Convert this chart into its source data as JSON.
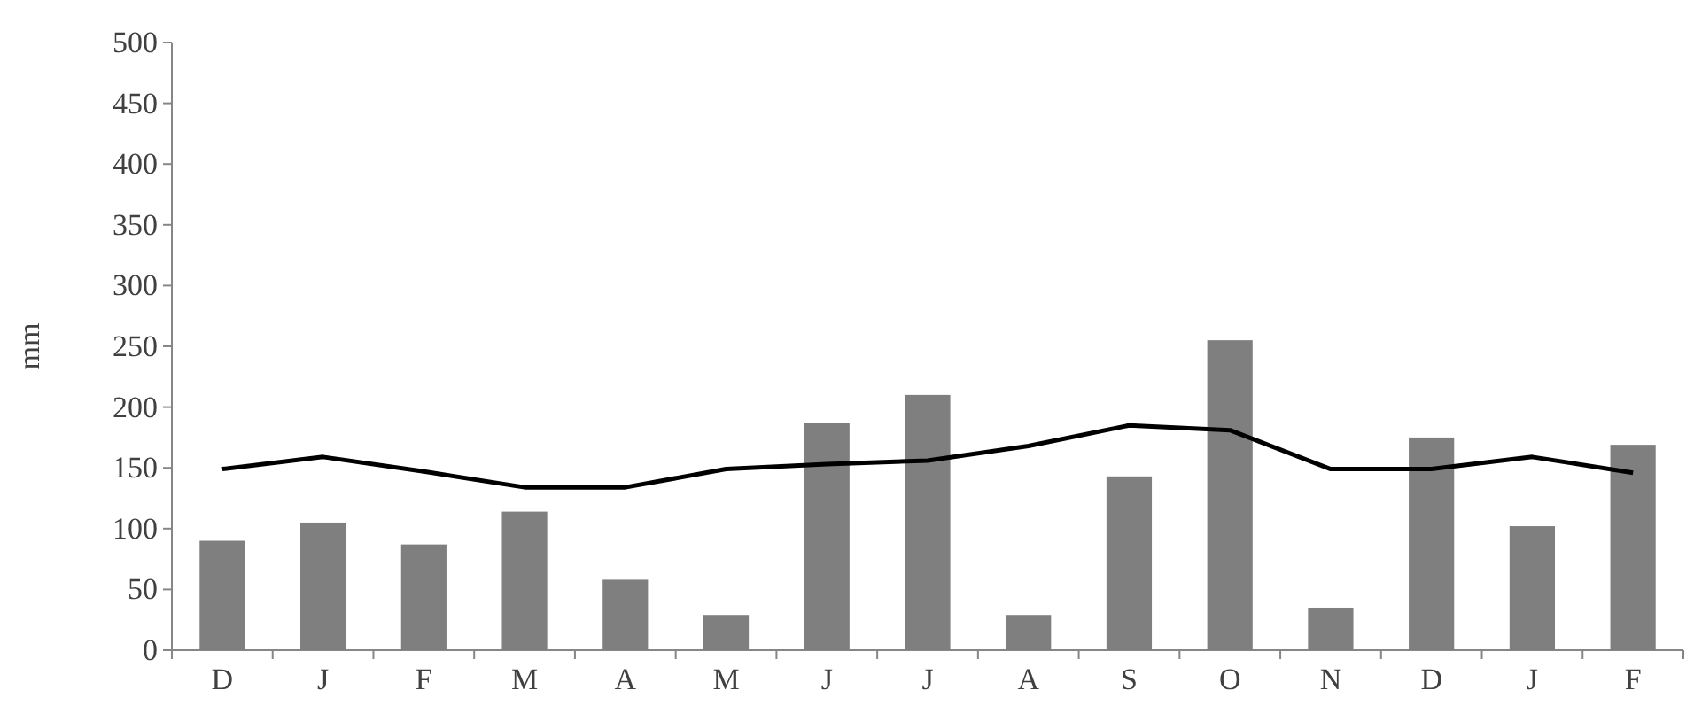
{
  "chart_data": {
    "type": "bar",
    "ylabel": "mm",
    "categories": [
      "D",
      "J",
      "F",
      "M",
      "A",
      "M",
      "J",
      "J",
      "A",
      "S",
      "O",
      "N",
      "D",
      "J",
      "F"
    ],
    "series": [
      {
        "color": "#7f7f7f",
        "values": [
          90,
          105,
          87,
          114,
          58,
          29,
          187,
          210,
          29,
          143,
          255,
          35,
          175,
          102,
          169
        ]
      },
      {
        "type": "line",
        "color": "#000000",
        "values": [
          149,
          159,
          147,
          134,
          134,
          149,
          153,
          156,
          168,
          185,
          181,
          149,
          149,
          159,
          146
        ]
      }
    ],
    "ylim": [
      0,
      500
    ],
    "yticks": [
      0,
      50,
      100,
      150,
      200,
      250,
      300,
      350,
      400,
      450,
      500
    ],
    "grid": false
  }
}
